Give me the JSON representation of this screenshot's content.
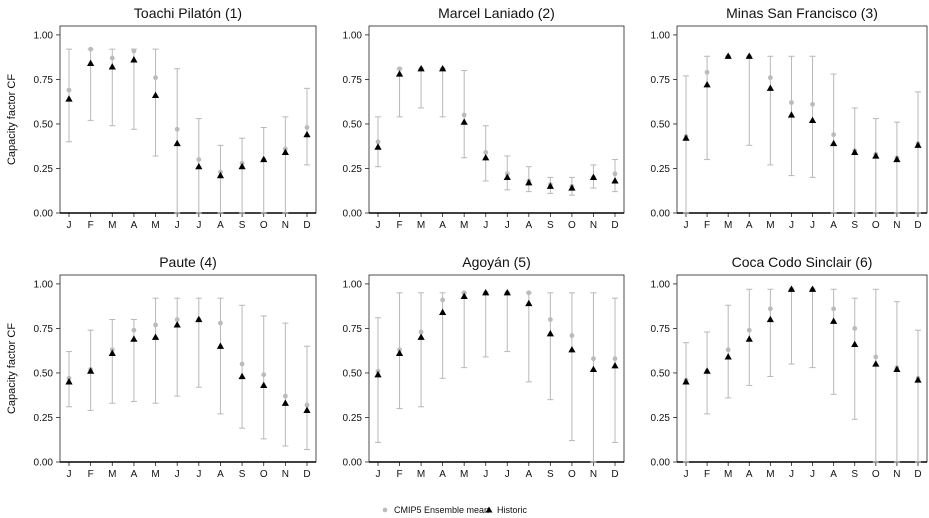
{
  "legend": {
    "ensemble_label": "CMIP5 Ensemble mean",
    "historic_label": "Historic",
    "ensemble_color": "#bbbbbb",
    "historic_color": "#000000",
    "whisker_color": "#b8b8b8"
  },
  "chart_data": [
    {
      "type": "scatter",
      "title": "Toachi Pilatón (1)",
      "ylabel": "Capacity factor CF",
      "categories": [
        "J",
        "F",
        "M",
        "A",
        "M",
        "J",
        "J",
        "A",
        "S",
        "O",
        "N",
        "D"
      ],
      "ylim": [
        0,
        1.05
      ],
      "yticks": [
        "0.00",
        "0.25",
        "0.50",
        "0.75",
        "1.00"
      ],
      "series": [
        {
          "name": "CMIP5 Ensemble mean",
          "values": [
            0.69,
            0.92,
            0.87,
            0.91,
            0.76,
            0.47,
            0.3,
            0.23,
            0.28,
            0.3,
            0.36,
            0.48
          ],
          "low": [
            0.4,
            0.52,
            0.49,
            0.47,
            0.32,
            0.0,
            0.0,
            0.0,
            0.0,
            0.0,
            0.0,
            0.27
          ],
          "high": [
            0.92,
            0.92,
            0.92,
            0.92,
            0.92,
            0.81,
            0.53,
            0.38,
            0.42,
            0.48,
            0.54,
            0.7
          ]
        },
        {
          "name": "Historic",
          "values": [
            0.64,
            0.84,
            0.82,
            0.86,
            0.66,
            0.39,
            0.26,
            0.21,
            0.26,
            0.3,
            0.34,
            0.44
          ]
        }
      ]
    },
    {
      "type": "scatter",
      "title": "Marcel Laniado (2)",
      "ylabel": "",
      "categories": [
        "J",
        "F",
        "M",
        "A",
        "M",
        "J",
        "J",
        "A",
        "S",
        "O",
        "N",
        "D"
      ],
      "ylim": [
        0,
        1.05
      ],
      "yticks": [
        "0.00",
        "0.25",
        "0.50",
        "0.75",
        "1.00"
      ],
      "series": [
        {
          "name": "CMIP5 Ensemble mean",
          "values": [
            0.4,
            0.81,
            0.81,
            0.81,
            0.55,
            0.34,
            0.22,
            0.18,
            0.16,
            0.15,
            0.2,
            0.22
          ],
          "low": [
            0.26,
            0.54,
            0.59,
            0.54,
            0.31,
            0.18,
            0.13,
            0.12,
            0.11,
            0.1,
            0.14,
            0.12
          ],
          "high": [
            0.54,
            0.81,
            0.81,
            0.81,
            0.8,
            0.49,
            0.32,
            0.26,
            0.2,
            0.2,
            0.27,
            0.3
          ]
        },
        {
          "name": "Historic",
          "values": [
            0.37,
            0.78,
            0.81,
            0.81,
            0.51,
            0.31,
            0.2,
            0.17,
            0.15,
            0.14,
            0.2,
            0.18
          ]
        }
      ]
    },
    {
      "type": "scatter",
      "title": "Minas San Francisco (3)",
      "ylabel": "",
      "categories": [
        "J",
        "F",
        "M",
        "A",
        "M",
        "J",
        "J",
        "A",
        "S",
        "O",
        "N",
        "D"
      ],
      "ylim": [
        0,
        1.05
      ],
      "yticks": [
        "0.00",
        "0.25",
        "0.50",
        "0.75",
        "1.00"
      ],
      "series": [
        {
          "name": "CMIP5 Ensemble mean",
          "values": [
            0.43,
            0.79,
            0.88,
            0.88,
            0.76,
            0.62,
            0.61,
            0.44,
            0.35,
            0.33,
            0.31,
            0.39
          ],
          "low": [
            0.0,
            0.3,
            0.88,
            0.38,
            0.27,
            0.21,
            0.2,
            0.0,
            0.0,
            0.0,
            0.0,
            0.0
          ],
          "high": [
            0.77,
            0.88,
            0.88,
            0.88,
            0.88,
            0.88,
            0.88,
            0.78,
            0.59,
            0.53,
            0.51,
            0.68
          ]
        },
        {
          "name": "Historic",
          "values": [
            0.42,
            0.72,
            0.88,
            0.88,
            0.7,
            0.55,
            0.52,
            0.39,
            0.34,
            0.32,
            0.3,
            0.38
          ]
        }
      ]
    },
    {
      "type": "scatter",
      "title": "Paute (4)",
      "ylabel": "Capacity factor CF",
      "categories": [
        "J",
        "F",
        "M",
        "A",
        "M",
        "J",
        "J",
        "A",
        "S",
        "O",
        "N",
        "D"
      ],
      "ylim": [
        0,
        1.05
      ],
      "yticks": [
        "0.00",
        "0.25",
        "0.50",
        "0.75",
        "1.00"
      ],
      "series": [
        {
          "name": "CMIP5 Ensemble mean",
          "values": [
            0.47,
            0.52,
            0.63,
            0.74,
            0.77,
            0.8,
            0.8,
            0.78,
            0.55,
            0.49,
            0.37,
            0.32
          ],
          "low": [
            0.31,
            0.29,
            0.33,
            0.34,
            0.33,
            0.37,
            0.42,
            0.27,
            0.19,
            0.13,
            0.09,
            0.07
          ],
          "high": [
            0.62,
            0.74,
            0.8,
            0.8,
            0.92,
            0.92,
            0.92,
            0.92,
            0.88,
            0.82,
            0.78,
            0.65
          ]
        },
        {
          "name": "Historic",
          "values": [
            0.45,
            0.51,
            0.61,
            0.69,
            0.7,
            0.77,
            0.8,
            0.65,
            0.48,
            0.43,
            0.33,
            0.29
          ]
        }
      ]
    },
    {
      "type": "scatter",
      "title": "Agoyán (5)",
      "ylabel": "",
      "categories": [
        "J",
        "F",
        "M",
        "A",
        "M",
        "J",
        "J",
        "A",
        "S",
        "O",
        "N",
        "D"
      ],
      "ylim": [
        0,
        1.05
      ],
      "yticks": [
        "0.00",
        "0.25",
        "0.50",
        "0.75",
        "1.00"
      ],
      "series": [
        {
          "name": "CMIP5 Ensemble mean",
          "values": [
            0.51,
            0.63,
            0.73,
            0.91,
            0.95,
            0.95,
            0.95,
            0.95,
            0.8,
            0.71,
            0.58,
            0.58
          ],
          "low": [
            0.11,
            0.3,
            0.31,
            0.47,
            0.53,
            0.59,
            0.62,
            0.45,
            0.35,
            0.12,
            0.0,
            0.11
          ],
          "high": [
            0.81,
            0.95,
            0.95,
            0.95,
            0.95,
            0.95,
            0.95,
            0.95,
            0.95,
            0.95,
            0.95,
            0.92
          ]
        },
        {
          "name": "Historic",
          "values": [
            0.49,
            0.61,
            0.7,
            0.84,
            0.93,
            0.95,
            0.95,
            0.89,
            0.72,
            0.63,
            0.52,
            0.54
          ]
        }
      ]
    },
    {
      "type": "scatter",
      "title": "Coca Codo Sinclair (6)",
      "ylabel": "",
      "categories": [
        "J",
        "F",
        "M",
        "A",
        "M",
        "J",
        "J",
        "A",
        "S",
        "O",
        "N",
        "D"
      ],
      "ylim": [
        0,
        1.05
      ],
      "yticks": [
        "0.00",
        "0.25",
        "0.50",
        "0.75",
        "1.00"
      ],
      "series": [
        {
          "name": "CMIP5 Ensemble mean",
          "values": [
            0.46,
            0.51,
            0.63,
            0.74,
            0.86,
            0.97,
            0.97,
            0.86,
            0.75,
            0.59,
            0.53,
            0.47
          ],
          "low": [
            0.0,
            0.27,
            0.36,
            0.43,
            0.48,
            0.55,
            0.53,
            0.38,
            0.24,
            0.0,
            0.0,
            0.0
          ],
          "high": [
            0.67,
            0.73,
            0.88,
            0.97,
            0.97,
            0.97,
            0.97,
            0.97,
            0.92,
            0.97,
            0.9,
            0.74
          ]
        },
        {
          "name": "Historic",
          "values": [
            0.45,
            0.51,
            0.59,
            0.69,
            0.8,
            0.97,
            0.97,
            0.79,
            0.66,
            0.55,
            0.52,
            0.46
          ]
        }
      ]
    }
  ]
}
